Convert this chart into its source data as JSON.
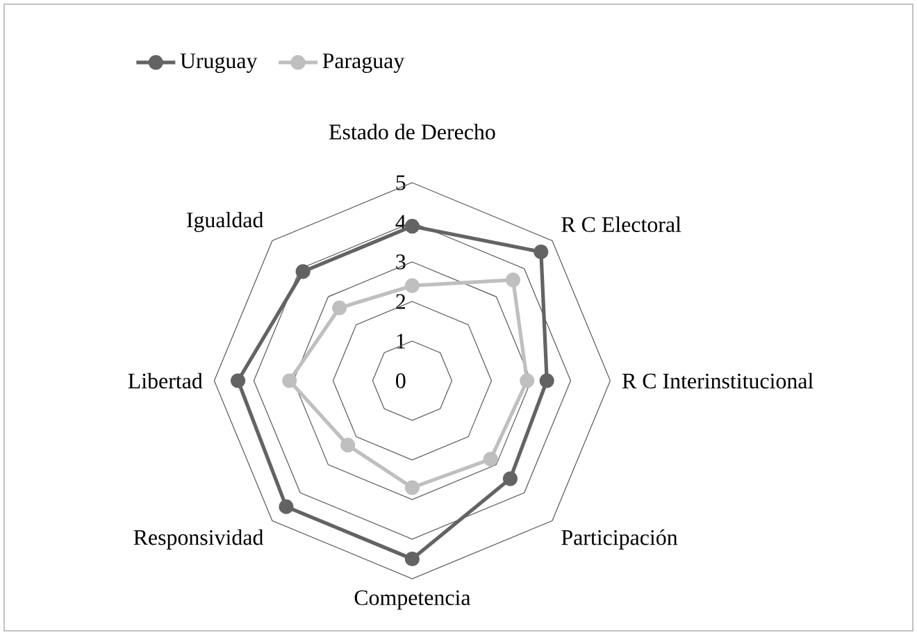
{
  "chart_data": {
    "type": "radar",
    "categories": [
      "Estado de Derecho",
      "R C Electoral",
      "R C Interinstitucional",
      "Participación",
      "Competencia",
      "Responsividad",
      "Libertad",
      "Igualdad"
    ],
    "series": [
      {
        "name": "Uruguay",
        "color": "#636363",
        "values": [
          3.9,
          4.6,
          3.4,
          3.5,
          4.5,
          4.5,
          4.4,
          3.9
        ]
      },
      {
        "name": "Paraguay",
        "color": "#bfbfbf",
        "values": [
          2.4,
          3.6,
          2.9,
          2.8,
          2.7,
          2.3,
          3.1,
          2.6
        ]
      }
    ],
    "ylim": [
      0,
      5
    ],
    "yticks": [
      0,
      1,
      2,
      3,
      4,
      5
    ],
    "grid": true,
    "legend": "top",
    "marker": "circle",
    "line_style": "solid"
  }
}
